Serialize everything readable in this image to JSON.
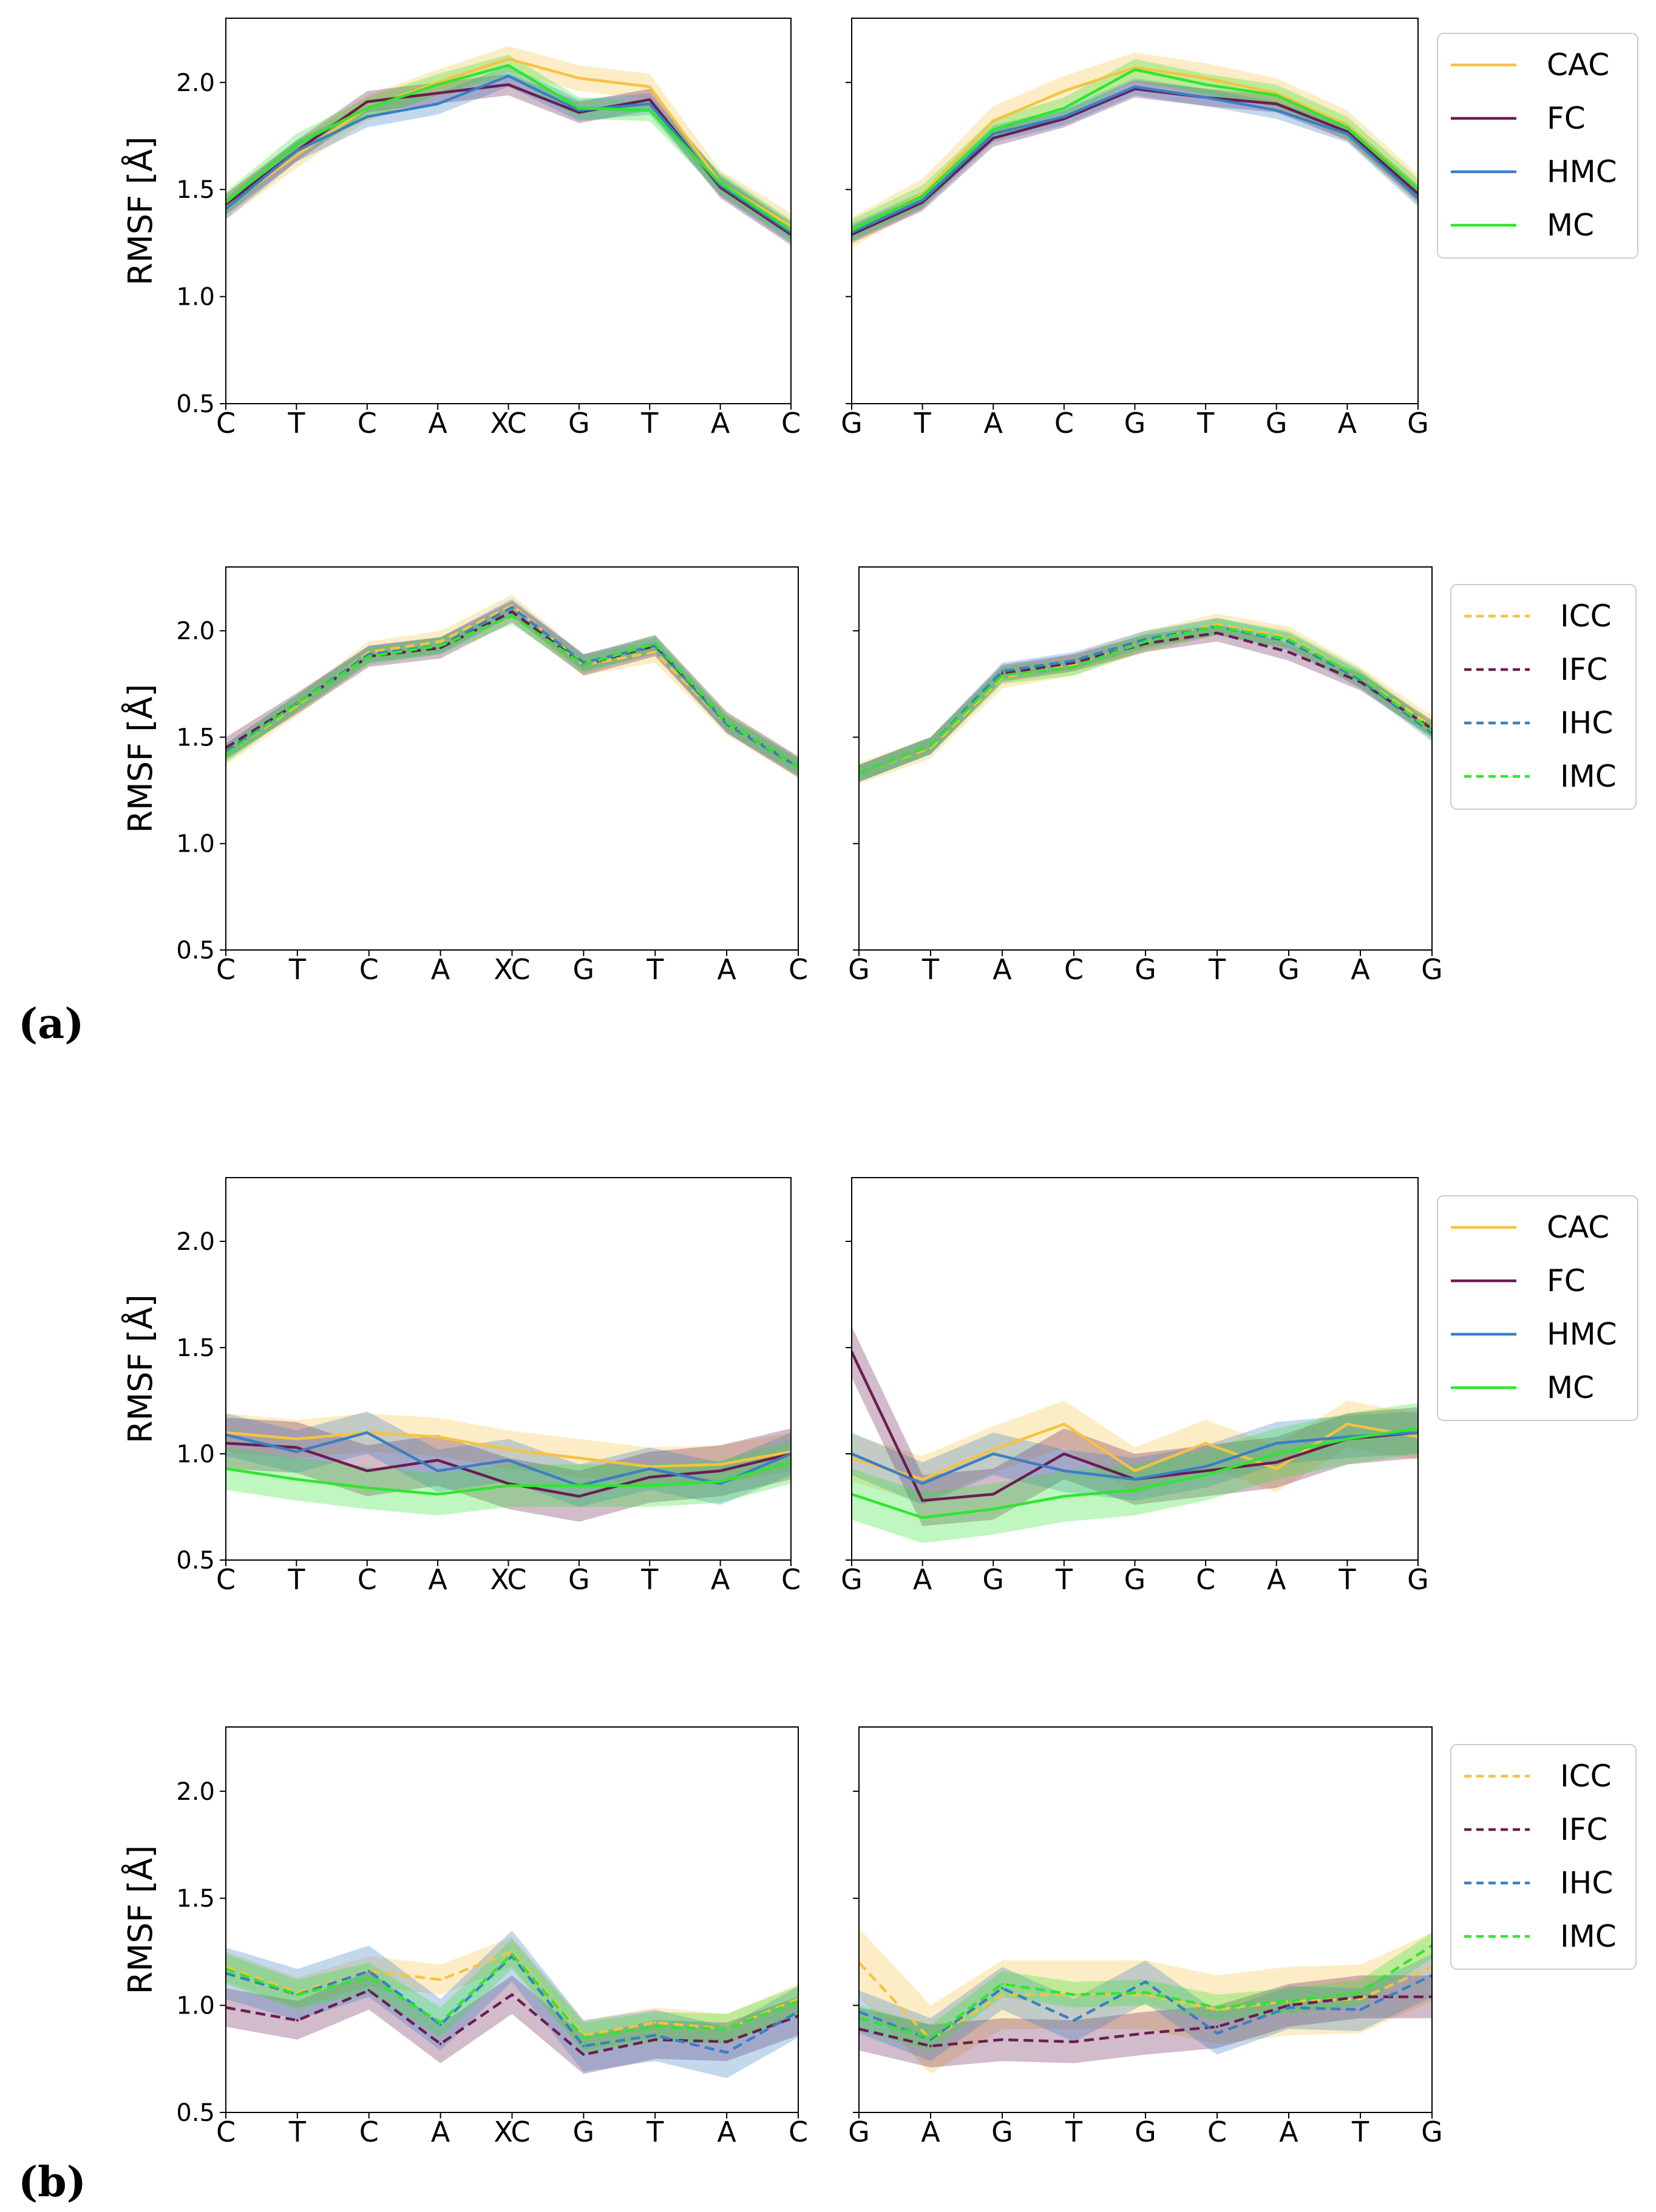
{
  "figure": {
    "panel_labels": [
      "(a)",
      "(b)"
    ],
    "colors": {
      "CAC": "#f5c242",
      "FC": "#6b1d52",
      "HMC": "#3a7fc4",
      "MC": "#2fe62f",
      "ICC": "#f5c242",
      "IFC": "#6b1d52",
      "IHC": "#3a7fc4",
      "IMC": "#2fe62f"
    }
  },
  "chart_data": [
    {
      "type": "line",
      "panel": "(a)",
      "row": 1,
      "ylabel": "RMSF [Å]",
      "ylim": [
        0.5,
        2.3
      ],
      "yticks": [
        "0.5",
        "1.0",
        "1.5",
        "2.0"
      ],
      "legend": [
        "CAC",
        "FC",
        "HMC",
        "MC"
      ],
      "legend_placement": "right",
      "line_style": "solid",
      "subplots": [
        {
          "categories": [
            "C",
            "T",
            "C",
            "A",
            "XC",
            "G",
            "T",
            "A",
            "C"
          ],
          "series": [
            {
              "name": "CAC",
              "values": [
                1.42,
                1.66,
                1.88,
                2.0,
                2.11,
                2.02,
                1.98,
                1.53,
                1.33
              ],
              "band": 0.06
            },
            {
              "name": "FC",
              "values": [
                1.43,
                1.68,
                1.91,
                1.95,
                1.99,
                1.86,
                1.92,
                1.51,
                1.29
              ],
              "band": 0.05
            },
            {
              "name": "HMC",
              "values": [
                1.41,
                1.68,
                1.84,
                1.9,
                2.03,
                1.87,
                1.9,
                1.52,
                1.3
              ],
              "band": 0.05
            },
            {
              "name": "MC",
              "values": [
                1.44,
                1.71,
                1.88,
                1.99,
                2.08,
                1.88,
                1.87,
                1.53,
                1.31
              ],
              "band": 0.05
            }
          ]
        },
        {
          "categories": [
            "G",
            "T",
            "A",
            "C",
            "G",
            "T",
            "G",
            "A",
            "G"
          ],
          "series": [
            {
              "name": "CAC",
              "values": [
                1.3,
                1.48,
                1.82,
                1.96,
                2.07,
                2.02,
                1.95,
                1.8,
                1.5
              ],
              "band": 0.07
            },
            {
              "name": "FC",
              "values": [
                1.29,
                1.44,
                1.74,
                1.83,
                1.97,
                1.93,
                1.9,
                1.77,
                1.48
              ],
              "band": 0.04
            },
            {
              "name": "HMC",
              "values": [
                1.3,
                1.45,
                1.76,
                1.84,
                1.98,
                1.93,
                1.87,
                1.76,
                1.46
              ],
              "band": 0.04
            },
            {
              "name": "MC",
              "values": [
                1.31,
                1.47,
                1.78,
                1.88,
                2.06,
                1.99,
                1.94,
                1.79,
                1.5
              ],
              "band": 0.05
            }
          ]
        }
      ]
    },
    {
      "type": "line",
      "panel": "(a)",
      "row": 2,
      "ylabel": "RMSF [Å]",
      "ylim": [
        0.5,
        2.3
      ],
      "yticks": [
        "0.5",
        "1.0",
        "1.5",
        "2.0"
      ],
      "legend": [
        "ICC",
        "IFC",
        "IHC",
        "IMC"
      ],
      "legend_placement": "right",
      "line_style": "dashed",
      "subplots": [
        {
          "categories": [
            "C",
            "T",
            "C",
            "A",
            "XC",
            "G",
            "T",
            "A",
            "C"
          ],
          "series": [
            {
              "name": "ICC",
              "values": [
                1.42,
                1.65,
                1.9,
                1.95,
                2.12,
                1.84,
                1.9,
                1.56,
                1.36
              ],
              "band": 0.05
            },
            {
              "name": "IFC",
              "values": [
                1.45,
                1.66,
                1.88,
                1.92,
                2.09,
                1.84,
                1.93,
                1.57,
                1.36
              ],
              "band": 0.05
            },
            {
              "name": "IHC",
              "values": [
                1.43,
                1.66,
                1.89,
                1.93,
                2.11,
                1.85,
                1.93,
                1.56,
                1.36
              ],
              "band": 0.04
            },
            {
              "name": "IMC",
              "values": [
                1.42,
                1.66,
                1.88,
                1.93,
                2.07,
                1.84,
                1.94,
                1.57,
                1.36
              ],
              "band": 0.04
            }
          ]
        },
        {
          "categories": [
            "G",
            "T",
            "A",
            "C",
            "G",
            "T",
            "G",
            "A",
            "G"
          ],
          "series": [
            {
              "name": "ICC",
              "values": [
                1.33,
                1.45,
                1.78,
                1.84,
                1.95,
                2.03,
                1.97,
                1.78,
                1.55
              ],
              "band": 0.05
            },
            {
              "name": "IFC",
              "values": [
                1.33,
                1.46,
                1.8,
                1.85,
                1.94,
                1.99,
                1.9,
                1.76,
                1.54
              ],
              "band": 0.04
            },
            {
              "name": "IHC",
              "values": [
                1.33,
                1.46,
                1.81,
                1.86,
                1.96,
                2.02,
                1.95,
                1.77,
                1.52
              ],
              "band": 0.04
            },
            {
              "name": "IMC",
              "values": [
                1.33,
                1.46,
                1.79,
                1.83,
                1.95,
                2.02,
                1.96,
                1.78,
                1.53
              ],
              "band": 0.04
            }
          ]
        }
      ]
    },
    {
      "type": "line",
      "panel": "(b)",
      "row": 1,
      "ylabel": "RMSF [Å]",
      "ylim": [
        0.5,
        2.3
      ],
      "yticks": [
        "0.5",
        "1.0",
        "1.5",
        "2.0"
      ],
      "legend": [
        "CAC",
        "FC",
        "HMC",
        "MC"
      ],
      "legend_placement": "right",
      "line_style": "solid",
      "subplots": [
        {
          "categories": [
            "C",
            "T",
            "C",
            "A",
            "XC",
            "G",
            "T",
            "A",
            "C"
          ],
          "series": [
            {
              "name": "CAC",
              "values": [
                1.1,
                1.07,
                1.1,
                1.08,
                1.02,
                0.98,
                0.94,
                0.95,
                1.01
              ],
              "band": 0.09
            },
            {
              "name": "FC",
              "values": [
                1.05,
                1.03,
                0.92,
                0.97,
                0.86,
                0.8,
                0.89,
                0.92,
                1.0
              ],
              "band": 0.12
            },
            {
              "name": "HMC",
              "values": [
                1.09,
                1.01,
                1.1,
                0.92,
                0.97,
                0.85,
                0.93,
                0.86,
                1.0
              ],
              "band": 0.1
            },
            {
              "name": "MC",
              "values": [
                0.93,
                0.88,
                0.84,
                0.81,
                0.85,
                0.85,
                0.85,
                0.87,
                0.96
              ],
              "band": 0.1
            }
          ]
        },
        {
          "categories": [
            "G",
            "A",
            "G",
            "T",
            "G",
            "C",
            "A",
            "T",
            "G"
          ],
          "series": [
            {
              "name": "CAC",
              "values": [
                0.98,
                0.88,
                1.02,
                1.14,
                0.92,
                1.05,
                0.93,
                1.14,
                1.08
              ],
              "band": 0.11
            },
            {
              "name": "FC",
              "values": [
                1.48,
                0.78,
                0.81,
                1.0,
                0.88,
                0.92,
                0.96,
                1.07,
                1.1
              ],
              "band": 0.12
            },
            {
              "name": "HMC",
              "values": [
                1.0,
                0.86,
                1.0,
                0.92,
                0.88,
                0.94,
                1.05,
                1.08,
                1.1
              ],
              "band": 0.1
            },
            {
              "name": "MC",
              "values": [
                0.81,
                0.7,
                0.74,
                0.8,
                0.83,
                0.9,
                1.0,
                1.07,
                1.12
              ],
              "band": 0.12
            }
          ]
        }
      ]
    },
    {
      "type": "line",
      "panel": "(b)",
      "row": 2,
      "ylabel": "RMSF [Å]",
      "ylim": [
        0.5,
        2.3
      ],
      "yticks": [
        "0.5",
        "1.0",
        "1.5",
        "2.0"
      ],
      "legend": [
        "ICC",
        "IFC",
        "IHC",
        "IMC"
      ],
      "legend_placement": "right",
      "line_style": "dashed",
      "subplots": [
        {
          "categories": [
            "C",
            "T",
            "C",
            "A",
            "XC",
            "G",
            "T",
            "A",
            "C"
          ],
          "series": [
            {
              "name": "ICC",
              "values": [
                1.18,
                1.06,
                1.16,
                1.12,
                1.25,
                0.86,
                0.92,
                0.89,
                1.03
              ],
              "band": 0.07
            },
            {
              "name": "IFC",
              "values": [
                0.99,
                0.93,
                1.07,
                0.82,
                1.05,
                0.77,
                0.84,
                0.83,
                0.95
              ],
              "band": 0.09
            },
            {
              "name": "IHC",
              "values": [
                1.15,
                1.05,
                1.16,
                0.91,
                1.23,
                0.81,
                0.86,
                0.78,
                0.97
              ],
              "band": 0.12
            },
            {
              "name": "IMC",
              "values": [
                1.17,
                1.05,
                1.13,
                0.92,
                1.24,
                0.85,
                0.9,
                0.89,
                1.02
              ],
              "band": 0.07
            }
          ]
        },
        {
          "categories": [
            "G",
            "A",
            "G",
            "T",
            "G",
            "C",
            "A",
            "T",
            "G"
          ],
          "series": [
            {
              "name": "ICC",
              "values": [
                1.2,
                0.84,
                1.05,
                1.05,
                1.05,
                0.98,
                1.02,
                1.03,
                1.18
              ],
              "band": 0.16
            },
            {
              "name": "IFC",
              "values": [
                0.89,
                0.81,
                0.84,
                0.83,
                0.87,
                0.9,
                1.0,
                1.04,
                1.04
              ],
              "band": 0.1
            },
            {
              "name": "IHC",
              "values": [
                0.97,
                0.84,
                1.08,
                0.93,
                1.11,
                0.87,
                0.99,
                0.98,
                1.14
              ],
              "band": 0.1
            },
            {
              "name": "IMC",
              "values": [
                0.94,
                0.85,
                1.1,
                1.05,
                1.06,
                0.99,
                1.02,
                1.06,
                1.28
              ],
              "band": 0.06
            }
          ]
        }
      ]
    }
  ]
}
